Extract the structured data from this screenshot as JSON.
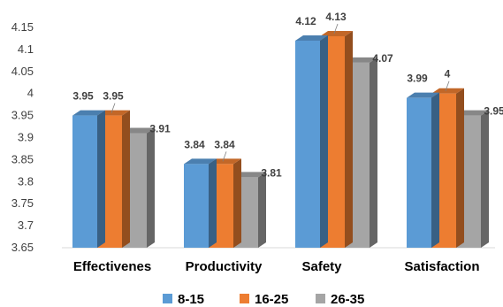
{
  "chart_data": {
    "type": "bar",
    "style": "3d-clustered-column",
    "categories": [
      "Effectivenes",
      "Productivity",
      "Safety",
      "Satisfaction"
    ],
    "series": [
      {
        "name": "8-15",
        "values": [
          3.95,
          3.84,
          4.12,
          3.99
        ],
        "labels": [
          "3.95",
          "3.84",
          "4.12",
          "3.99"
        ],
        "color": "#5B9BD5"
      },
      {
        "name": "16-25",
        "values": [
          3.95,
          3.84,
          4.13,
          4.0
        ],
        "labels": [
          "3.95",
          "3.84",
          "4.13",
          "4"
        ],
        "color": "#ED7D31"
      },
      {
        "name": "26-35",
        "values": [
          3.91,
          3.81,
          4.07,
          3.95
        ],
        "labels": [
          "3.91",
          "3.81",
          "4.07",
          "3.95"
        ],
        "color": "#A5A5A5"
      }
    ],
    "yticks": [
      "3.65",
      "3.7",
      "3.75",
      "3.8",
      "3.85",
      "3.9",
      "3.95",
      "4",
      "4.05",
      "4.1",
      "4.15"
    ],
    "ylim": [
      3.65,
      4.15
    ],
    "legend_position": "bottom",
    "grid": false
  }
}
